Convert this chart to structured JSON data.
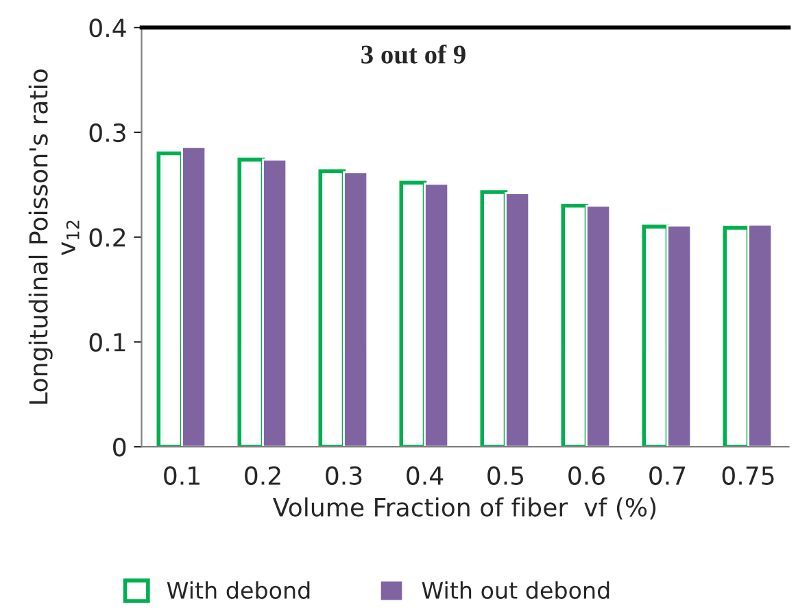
{
  "chart_data": {
    "type": "bar",
    "xlabel": "Volume Fraction of fiber  vf (%)",
    "ylabel": "Longitudinal Poisson's ratio\nv$_{12}$",
    "annotations": [
      "3 out of 9"
    ],
    "categories": [
      "0.1",
      "0.2",
      "0.3",
      "0.4",
      "0.5",
      "0.6",
      "0.7",
      "0.75"
    ],
    "series": [
      {
        "name": "With debond",
        "color": "#00b050",
        "values": [
          0.28,
          0.274,
          0.263,
          0.252,
          0.243,
          0.23,
          0.21,
          0.209
        ]
      },
      {
        "name": "With out debond",
        "color": "#8064a2",
        "values": [
          0.286,
          0.274,
          0.262,
          0.251,
          0.242,
          0.23,
          0.211,
          0.212
        ]
      }
    ],
    "ylim": [
      0,
      0.4
    ],
    "yticks": [
      {
        "value": 0,
        "label": "0"
      },
      0.1,
      0.2,
      0.3,
      0.4
    ],
    "grid": false,
    "legend": "bottom"
  }
}
